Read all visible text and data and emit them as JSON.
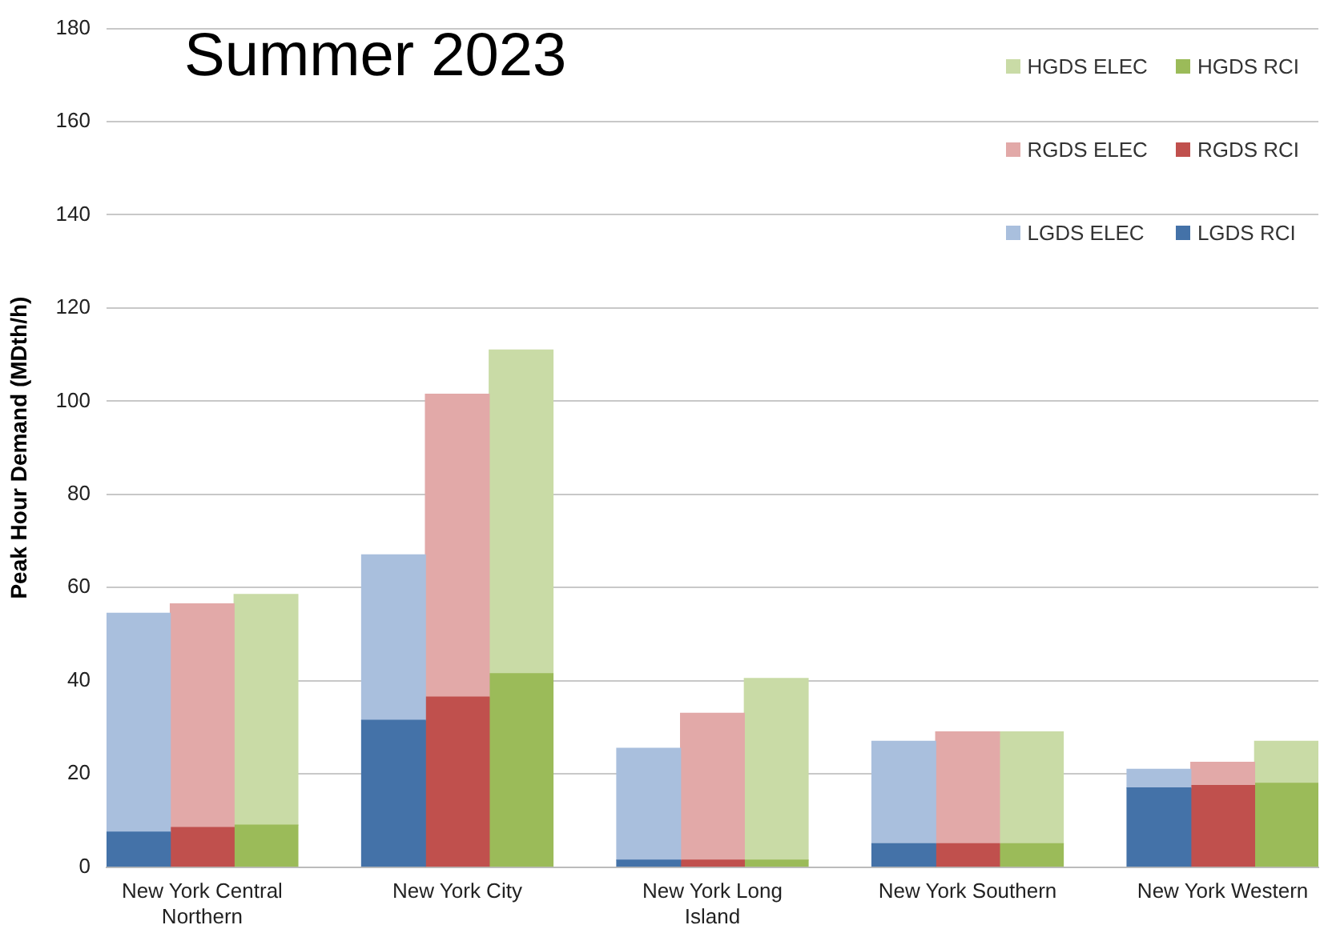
{
  "chart_data": {
    "type": "bar",
    "title": "Summer 2023",
    "ylabel": "Peak Hour Demand (MDth/h)",
    "categories": [
      null,
      "New York Central Northern",
      null,
      null,
      null,
      "New York City",
      null,
      null,
      null,
      "New York Long Island",
      null,
      null,
      null,
      "New York Southern",
      null,
      null,
      null,
      "New York Western",
      null
    ],
    "stacked": true,
    "series": [
      {
        "name": "LGDS RCI",
        "color": "#4472a8",
        "values": [
          7.5,
          null,
          null,
          null,
          31.5,
          null,
          null,
          null,
          1.5,
          null,
          null,
          null,
          5,
          null,
          null,
          null,
          17,
          null,
          null
        ]
      },
      {
        "name": "LGDS ELEC",
        "color": "#a9bfdd",
        "values": [
          47,
          null,
          null,
          null,
          35.5,
          null,
          null,
          null,
          24,
          null,
          null,
          null,
          22,
          null,
          null,
          null,
          4,
          null,
          null
        ]
      },
      {
        "name": "RGDS RCI",
        "color": "#c0504d",
        "values": [
          null,
          8.5,
          null,
          null,
          null,
          36.5,
          null,
          null,
          null,
          1.5,
          null,
          null,
          null,
          5,
          null,
          null,
          null,
          17.5,
          null
        ]
      },
      {
        "name": "RGDS ELEC",
        "color": "#e2a9a8",
        "values": [
          null,
          48,
          null,
          null,
          null,
          65,
          null,
          null,
          null,
          31.5,
          null,
          null,
          null,
          24,
          null,
          null,
          null,
          5,
          null
        ]
      },
      {
        "name": "HGDS RCI",
        "color": "#9bbb59",
        "values": [
          null,
          null,
          9,
          null,
          null,
          null,
          41.5,
          null,
          null,
          null,
          1.5,
          null,
          null,
          null,
          5,
          null,
          null,
          null,
          18
        ]
      },
      {
        "name": "HGDS ELEC",
        "color": "#c9dba6",
        "values": [
          null,
          null,
          49.5,
          null,
          null,
          null,
          69.5,
          null,
          null,
          null,
          39,
          null,
          null,
          null,
          24,
          null,
          null,
          null,
          9
        ]
      }
    ],
    "ylim": [
      0,
      180
    ],
    "yticks": [
      0,
      20,
      40,
      60,
      80,
      100,
      120,
      140,
      160,
      180
    ],
    "grid": "y",
    "legend": "top right"
  }
}
